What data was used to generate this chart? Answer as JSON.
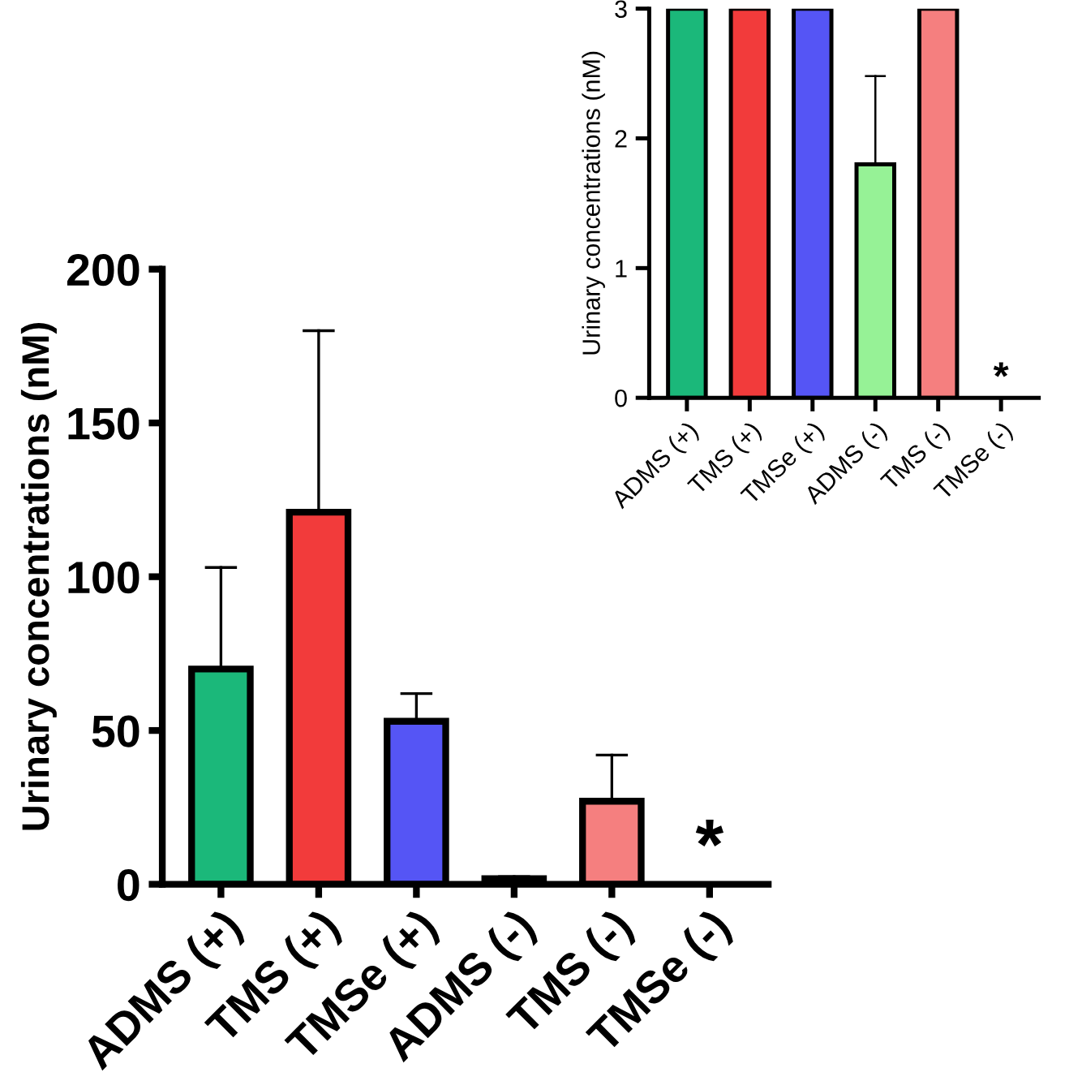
{
  "chart_data": [
    {
      "type": "bar",
      "ylabel": "Urinary concentrations (nM)",
      "categories": [
        "ADMS (+)",
        "TMS (+)",
        "TMSe (+)",
        "ADMS (-)",
        "TMS (-)",
        "TMSe (-)"
      ],
      "values": [
        70,
        121,
        53,
        1.8,
        27,
        null
      ],
      "colors": [
        "#1bb87a",
        "#f23b3b",
        "#5555f5",
        "#96f296",
        "#f57f7f",
        "#f57f7f"
      ],
      "errors": [
        [
          70,
          103
        ],
        [
          121,
          180
        ],
        [
          53,
          62
        ],
        [
          1.8,
          2.5
        ],
        [
          27,
          42
        ],
        null
      ],
      "ylim": [
        0,
        200
      ],
      "yticks": [
        0,
        50,
        100,
        150,
        200
      ],
      "annotations": [
        "*"
      ]
    },
    {
      "type": "bar",
      "ylabel": "Urinary concentrations (nM)",
      "categories": [
        "ADMS (+)",
        "TMS (+)",
        "TMSe (+)",
        "ADMS (-)",
        "TMS (-)",
        "TMSe (-)"
      ],
      "values": [
        3,
        3,
        3,
        1.8,
        3,
        null
      ],
      "colors": [
        "#1bb87a",
        "#f23b3b",
        "#5555f5",
        "#96f296",
        "#f57f7f",
        "#f57f7f"
      ],
      "errors": [
        null,
        null,
        null,
        [
          1.8,
          2.48
        ],
        null,
        null
      ],
      "ylim": [
        0,
        3
      ],
      "yticks": [
        0,
        1,
        2,
        3
      ],
      "annotations": [
        "*"
      ]
    }
  ]
}
